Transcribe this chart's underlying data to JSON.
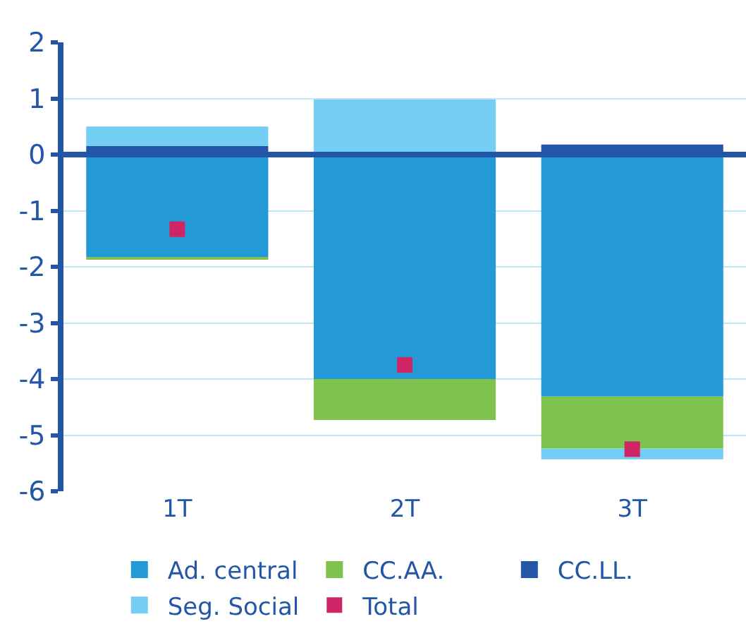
{
  "chart_data": {
    "type": "bar",
    "stacked": true,
    "categories": [
      "1T",
      "2T",
      "3T"
    ],
    "series": [
      {
        "name": "Ad. central",
        "color": "#2399d5",
        "values": [
          -1.83,
          -4.0,
          -4.31
        ]
      },
      {
        "name": "CC.AA.",
        "color": "#7fc24c",
        "values": [
          -0.02,
          -0.73,
          -0.93
        ]
      },
      {
        "name": "CC.LL.",
        "color": "#2356a7",
        "values": [
          0.15,
          0.0,
          0.18
        ]
      },
      {
        "name": "Seg. Social",
        "color": "#74cdf2",
        "values": [
          0.35,
          0.98,
          -0.19
        ]
      },
      {
        "name": "Total",
        "type": "scatter",
        "marker": "square",
        "color": "#cf2466",
        "values": [
          -1.33,
          -3.75,
          -5.25
        ]
      }
    ],
    "ref_lines": [
      {
        "axis": "y",
        "value": 0,
        "color": "#2356a7"
      }
    ],
    "ylim": [
      -6,
      2
    ],
    "yticks": [
      -6,
      -5,
      -4,
      -3,
      -2,
      -1,
      0,
      1,
      2
    ],
    "grid": "y",
    "legend": "bottom"
  }
}
